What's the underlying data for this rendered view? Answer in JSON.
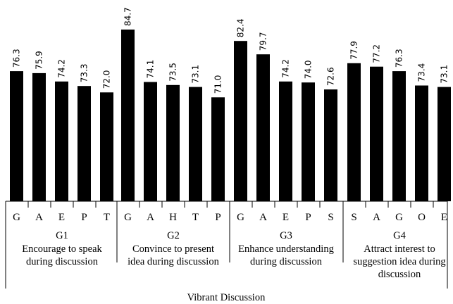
{
  "chart_data": {
    "type": "bar",
    "title": "",
    "xlabel": "",
    "ylabel": "",
    "ylim": [
      50,
      86
    ],
    "outer_label": "Vibrant Discussion",
    "colors": {
      "bar": "#000000",
      "text": "#000000",
      "background": "#ffffff"
    },
    "groups": [
      {
        "id": "G1",
        "lines": [
          "Encourage to speak",
          "during discussion"
        ],
        "categories": [
          "G",
          "A",
          "E",
          "P",
          "T"
        ],
        "values": [
          76.3,
          75.9,
          74.2,
          73.3,
          72.0
        ],
        "labels": [
          "76.3",
          "75.9",
          "74.2",
          "73.3",
          "72.0"
        ]
      },
      {
        "id": "G2",
        "lines": [
          "Convince to present",
          "idea during discussion"
        ],
        "categories": [
          "G",
          "A",
          "H",
          "T",
          "P"
        ],
        "values": [
          84.7,
          74.1,
          73.5,
          73.1,
          71.0
        ],
        "labels": [
          "84.7",
          "74.1",
          "73.5",
          "73.1",
          "71.0"
        ]
      },
      {
        "id": "G3",
        "lines": [
          "Enhance understanding",
          "during discussion"
        ],
        "categories": [
          "G",
          "A",
          "E",
          "P",
          "S"
        ],
        "values": [
          82.4,
          79.7,
          74.2,
          74.0,
          72.6
        ],
        "labels": [
          "82.4",
          "79.7",
          "74.2",
          "74.0",
          "72.6"
        ]
      },
      {
        "id": "G4",
        "lines": [
          "Attract interest to",
          "suggestion idea during",
          "discussion"
        ],
        "categories": [
          "S",
          "A",
          "G",
          "O",
          "E"
        ],
        "values": [
          77.9,
          77.2,
          76.3,
          73.4,
          73.1
        ],
        "labels": [
          "77.9",
          "77.2",
          "76.3",
          "73.4",
          "73.1"
        ]
      }
    ]
  }
}
